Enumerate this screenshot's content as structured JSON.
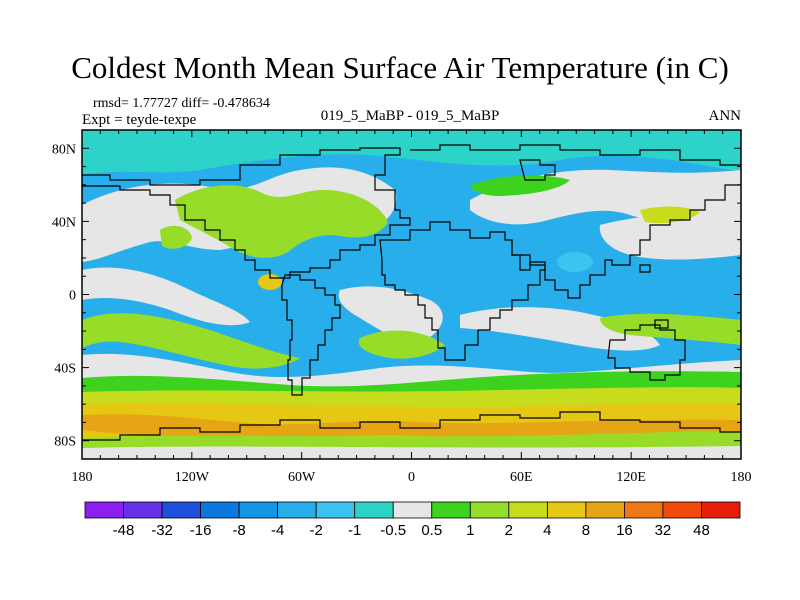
{
  "title": "Coldest Month Mean Surface Air Temperature (in C)",
  "stats": "rmsd= 1.77727  diff= -0.478634",
  "experiment": "Expt = teyde-texpe",
  "center_label": "019_5_MaBP - 019_5_MaBP",
  "season": "ANN",
  "map": {
    "lon_range": [
      -180,
      180
    ],
    "lat_range": [
      -90,
      90
    ],
    "x_ticks": [
      {
        "value": -180,
        "label": "180"
      },
      {
        "value": -120,
        "label": "120W"
      },
      {
        "value": -60,
        "label": "60W"
      },
      {
        "value": 0,
        "label": "0"
      },
      {
        "value": 60,
        "label": "60E"
      },
      {
        "value": 120,
        "label": "120E"
      },
      {
        "value": 180,
        "label": "180"
      }
    ],
    "y_ticks": [
      {
        "value": 80,
        "label": "80N"
      },
      {
        "value": 40,
        "label": "40N"
      },
      {
        "value": 0,
        "label": "0"
      },
      {
        "value": -40,
        "label": "40S"
      },
      {
        "value": -80,
        "label": "80S"
      }
    ]
  },
  "colorbar": {
    "labels": [
      "-48",
      "-32",
      "-16",
      "-8",
      "-4",
      "-2",
      "-1",
      "-0.5",
      "0.5",
      "1",
      "2",
      "4",
      "8",
      "16",
      "32",
      "48"
    ],
    "colors": [
      "#8c1ef0",
      "#6432e6",
      "#1e50dc",
      "#0a78dc",
      "#1496e6",
      "#28afeb",
      "#3cc3f0",
      "#2dd2c8",
      "#e6e6e6",
      "#3cd21e",
      "#96dc28",
      "#c8dc1e",
      "#e6c814",
      "#e6a514",
      "#f07814",
      "#f04b0a",
      "#e61e0a"
    ]
  }
}
